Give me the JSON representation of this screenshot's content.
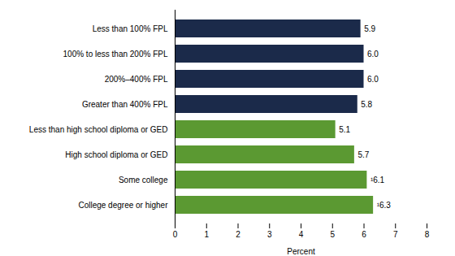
{
  "chart_data": {
    "type": "bar",
    "orientation": "horizontal",
    "categories": [
      "Less than 100% FPL",
      "100% to less than 200% FPL",
      "200%–400% FPL",
      "Greater than 400% FPL",
      "Less than high school diploma or GED",
      "High school diploma or GED",
      "Some college",
      "College degree or higher"
    ],
    "values": [
      5.9,
      6.0,
      6.0,
      5.8,
      5.1,
      5.7,
      6.1,
      6.3
    ],
    "value_labels": [
      "5.9",
      "6.0",
      "6.0",
      "5.8",
      "5.1",
      "5.7",
      "¹6.1",
      "¹6.3"
    ],
    "colors": [
      "#1b2a4a",
      "#1b2a4a",
      "#1b2a4a",
      "#1b2a4a",
      "#5b9932",
      "#5b9932",
      "#5b9932",
      "#5b9932"
    ],
    "xlabel": "Percent",
    "xlim": [
      0,
      8
    ],
    "xticks": [
      0,
      1,
      2,
      3,
      4,
      5,
      6,
      7,
      8
    ],
    "grid": false,
    "data_labels": true
  }
}
